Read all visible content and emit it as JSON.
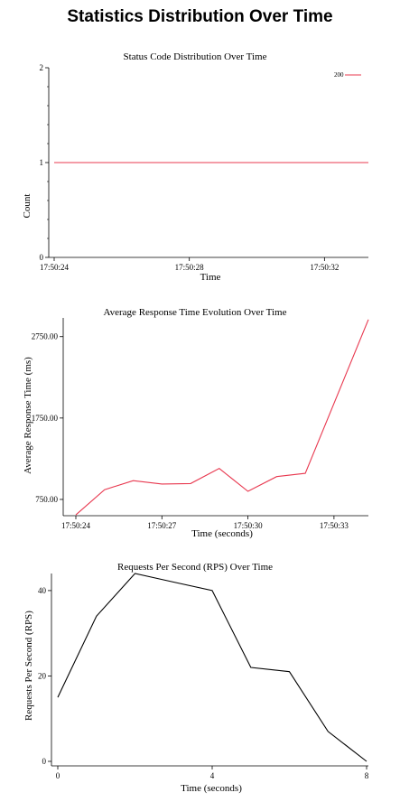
{
  "page": {
    "title": "Statistics Distribution Over Time"
  },
  "colors": {
    "status": "#e8384f",
    "response": "#e8384f",
    "rps": "#000000"
  },
  "chart_data": [
    {
      "type": "line",
      "title": "Status Code Distribution Over Time",
      "xlabel": "Time",
      "ylabel": "Count",
      "xlim": [
        24,
        33.3
      ],
      "ylim": [
        0,
        2
      ],
      "xticks": [
        {
          "v": 24,
          "label": "17:50:24"
        },
        {
          "v": 28,
          "label": "17:50:28"
        },
        {
          "v": 32,
          "label": "17:50:32"
        }
      ],
      "yticks": [
        {
          "v": 0,
          "label": "0"
        },
        {
          "v": 1,
          "label": "1"
        },
        {
          "v": 2,
          "label": "2"
        }
      ],
      "yminor": [
        0.2,
        0.4,
        0.6,
        0.8,
        1.2,
        1.4,
        1.6,
        1.8
      ],
      "legend": "top-right",
      "series": [
        {
          "name": "200",
          "x": [
            24,
            33.3
          ],
          "values": [
            1,
            1
          ]
        }
      ]
    },
    {
      "type": "line",
      "title": "Average Response Time Evolution Over Time",
      "xlabel": "Time (seconds)",
      "ylabel": "Average Response Time (ms)",
      "xlim": [
        24,
        34.2
      ],
      "ylim": [
        550,
        2980
      ],
      "xticks": [
        {
          "v": 24,
          "label": "17:50:24"
        },
        {
          "v": 27,
          "label": "17:50:27"
        },
        {
          "v": 30,
          "label": "17:50:30"
        },
        {
          "v": 33,
          "label": "17:50:33"
        }
      ],
      "yticks": [
        {
          "v": 750,
          "label": "750.00"
        },
        {
          "v": 1750,
          "label": "1750.00"
        },
        {
          "v": 2750,
          "label": "2750.00"
        }
      ],
      "series": [
        {
          "x": [
            24,
            25,
            26,
            27,
            28,
            29,
            30,
            31,
            32,
            34.2
          ],
          "values": [
            560,
            870,
            980,
            940,
            945,
            1130,
            850,
            1030,
            1070,
            2960
          ]
        }
      ]
    },
    {
      "type": "line",
      "title": "Requests Per Second (RPS) Over Time",
      "xlabel": "Time (seconds)",
      "ylabel": "Requests Per Second (RPS)",
      "xlim": [
        0,
        8
      ],
      "ylim": [
        0,
        44
      ],
      "xticks": [
        {
          "v": 0,
          "label": "0"
        },
        {
          "v": 4,
          "label": "4"
        },
        {
          "v": 8,
          "label": "8"
        }
      ],
      "yticks": [
        {
          "v": 0,
          "label": "0"
        },
        {
          "v": 20,
          "label": "20"
        },
        {
          "v": 40,
          "label": "40"
        }
      ],
      "series": [
        {
          "x": [
            0,
            1,
            2,
            3,
            4,
            5,
            6,
            7,
            8
          ],
          "values": [
            15,
            34,
            44,
            42,
            40,
            22,
            21,
            7,
            0
          ]
        }
      ]
    }
  ]
}
